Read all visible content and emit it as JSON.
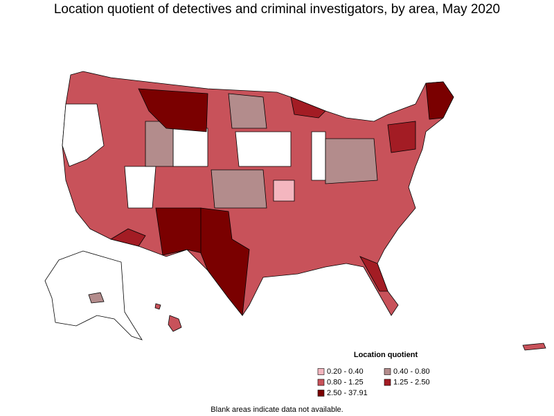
{
  "title": "Location quotient of detectives and criminal investigators, by area, May 2020",
  "legend": {
    "title": "Location quotient",
    "items": [
      {
        "label": "0.20 - 0.40",
        "color": "#f4b6bf"
      },
      {
        "label": "0.40 - 0.80",
        "color": "#b38c8c"
      },
      {
        "label": "0.80 - 1.25",
        "color": "#c8525a"
      },
      {
        "label": "1.25 - 2.50",
        "color": "#a31c24"
      },
      {
        "label": "2.50 - 37.91",
        "color": "#7a0000"
      }
    ]
  },
  "footnote": "Blank areas indicate data not available."
}
